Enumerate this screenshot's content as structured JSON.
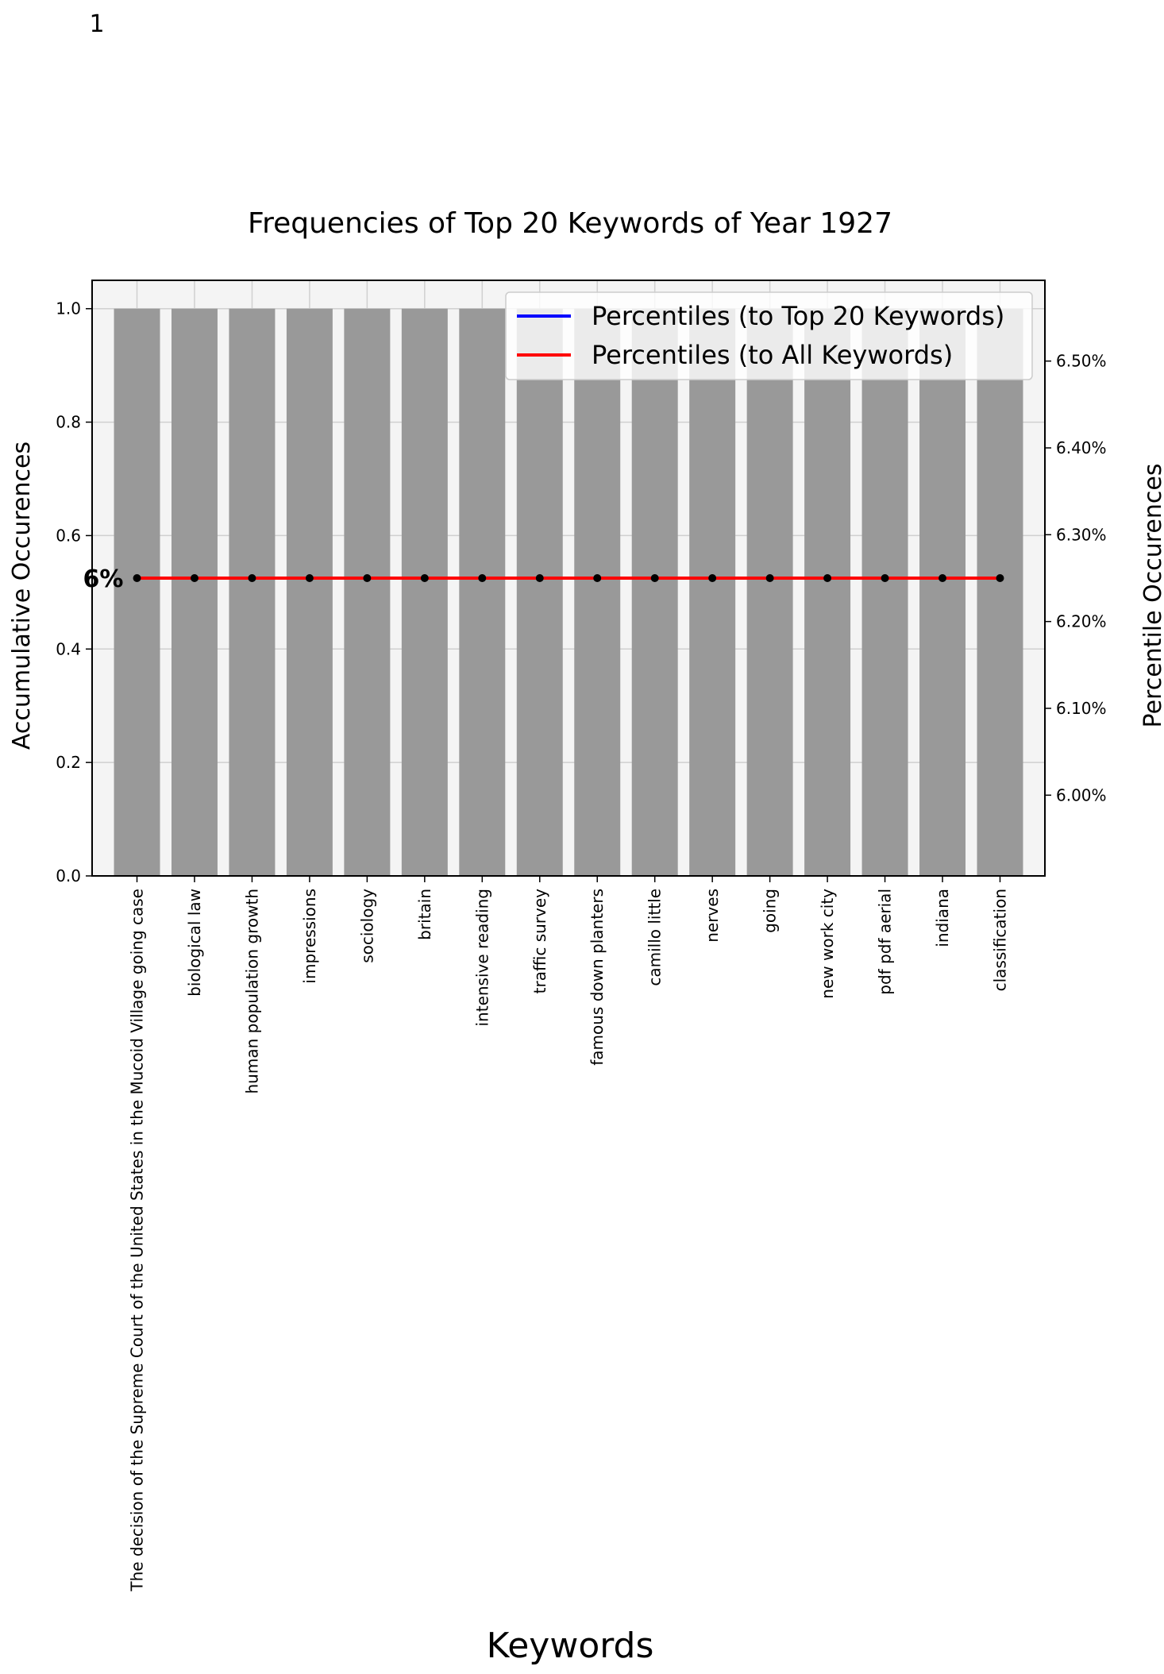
{
  "page_number": "1",
  "chart_data": {
    "type": "bar",
    "title": "Frequencies of Top 20 Keywords of Year 1927",
    "xlabel": "Keywords",
    "ylabel": "Accumulative Occurences",
    "y2label": "Percentile Occurences",
    "categories": [
      "The decision of the Supreme Court of the United States in the Mucoid Village going case",
      "biological law",
      "human population growth",
      "impressions",
      "sociology",
      "britain",
      "intensive reading",
      "traffic survey",
      "famous down planters",
      "camillo little",
      "nerves",
      "going",
      "new work city",
      "pdf pdf aerial",
      "indiana",
      "classification"
    ],
    "values": [
      1,
      1,
      1,
      1,
      1,
      1,
      1,
      1,
      1,
      1,
      1,
      1,
      1,
      1,
      1,
      1
    ],
    "ylim": [
      0,
      1.05
    ],
    "yticks": [
      0.0,
      0.2,
      0.4,
      0.6,
      0.8,
      1.0
    ],
    "ytick_labels": [
      "0.0",
      "0.2",
      "0.4",
      "0.6",
      "0.8",
      "1.0"
    ],
    "y2lim": [
      5.907,
      6.593
    ],
    "y2ticks": [
      6.0,
      6.1,
      6.2,
      6.3,
      6.4,
      6.5
    ],
    "y2tick_labels": [
      "6.00%",
      "6.10%",
      "6.20%",
      "6.30%",
      "6.40%",
      "6.50%"
    ],
    "line_series": [
      {
        "name": "Percentiles (to Top 20 Keywords)",
        "color": "#0000ff",
        "values": [
          6.25,
          6.25,
          6.25,
          6.25,
          6.25,
          6.25,
          6.25,
          6.25,
          6.25,
          6.25,
          6.25,
          6.25,
          6.25,
          6.25,
          6.25,
          6.25
        ]
      },
      {
        "name": "Percentiles (to All Keywords)",
        "color": "#ff0000",
        "values": [
          6.25,
          6.25,
          6.25,
          6.25,
          6.25,
          6.25,
          6.25,
          6.25,
          6.25,
          6.25,
          6.25,
          6.25,
          6.25,
          6.25,
          6.25,
          6.25
        ]
      }
    ],
    "legend": {
      "placement": "top-right",
      "entries": [
        "Percentiles (to Top 20 Keywords)",
        "Percentiles (to All Keywords)"
      ]
    },
    "annotation": {
      "text": "6%",
      "color": "#e8112d"
    },
    "bar_color": "#999999",
    "plot_background": "#f4f4f4",
    "grid": true
  }
}
